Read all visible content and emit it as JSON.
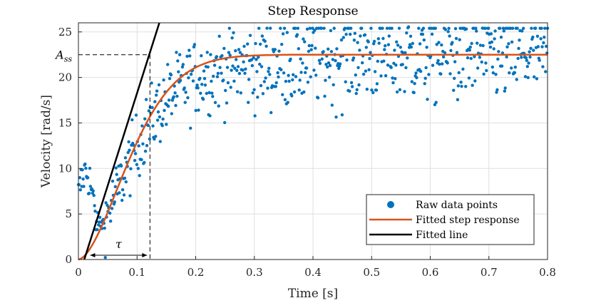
{
  "chart_data": {
    "type": "scatter",
    "title": "Step Response",
    "xlabel": "Time [s]",
    "ylabel": "Velocity [rad/s]",
    "xlim": [
      0,
      0.8
    ],
    "ylim": [
      0,
      26
    ],
    "xticks": [
      "0",
      "0.1",
      "0.2",
      "0.3",
      "0.4",
      "0.5",
      "0.6",
      "0.7",
      "0.8"
    ],
    "yticks": [
      "0",
      "5",
      "10",
      "15",
      "20",
      "25"
    ],
    "grid": true,
    "legend_position": "bottom-right",
    "steady_state": 22.5,
    "tau": 0.122,
    "fitted_line": {
      "x": [
        0.01,
        0.138
      ],
      "y": [
        0,
        26
      ]
    },
    "annotations": {
      "steady_state_label": "A",
      "steady_state_sub": "ss",
      "tau_label": "τ"
    },
    "series": [
      {
        "name": "Raw data points",
        "kind": "scatter",
        "color": "#0072BD"
      },
      {
        "name": "Fitted step response",
        "kind": "line",
        "color": "#D95319"
      },
      {
        "name": "Fitted line",
        "kind": "line",
        "color": "#000000"
      }
    ]
  }
}
